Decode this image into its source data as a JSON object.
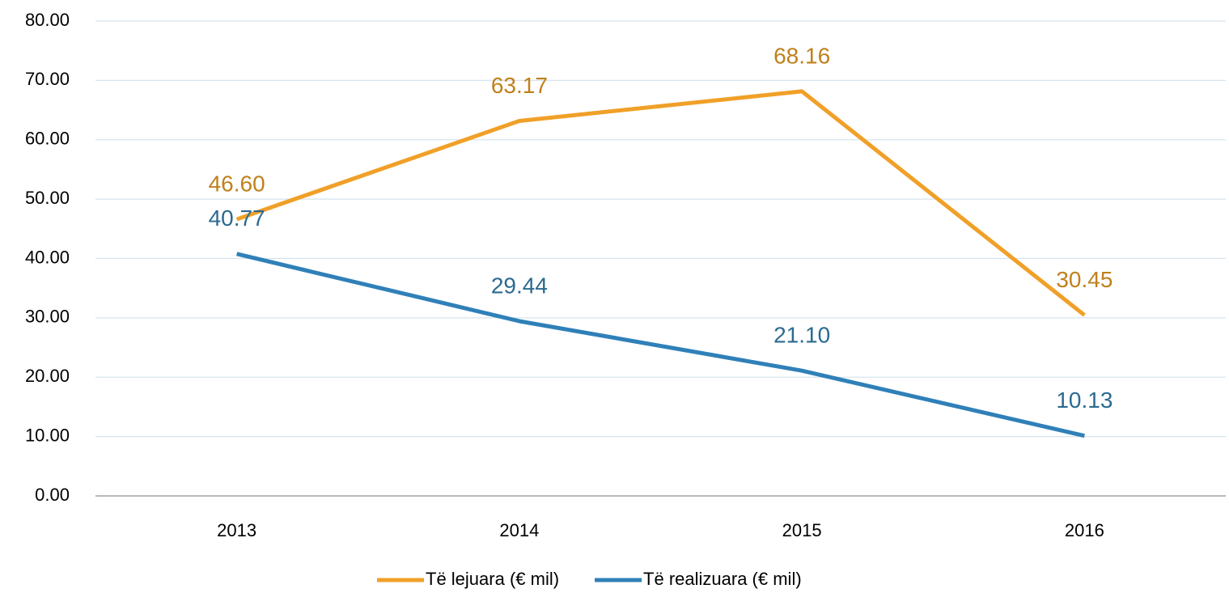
{
  "chart_data": {
    "type": "line",
    "categories": [
      "2013",
      "2014",
      "2015",
      "2016"
    ],
    "series": [
      {
        "name": "Të lejuara (€ mil)",
        "color": "#f0a028",
        "label_color": "#c0801c",
        "values": [
          46.6,
          63.17,
          68.16,
          30.45
        ],
        "value_labels": [
          "46.60",
          "63.17",
          "68.16",
          "30.45"
        ]
      },
      {
        "name": "Të realizuara (€ mil)",
        "color": "#2f80b8",
        "label_color": "#2b6a90",
        "values": [
          40.77,
          29.44,
          21.1,
          10.13
        ],
        "value_labels": [
          "40.77",
          "29.44",
          "21.10",
          "10.13"
        ]
      }
    ],
    "ylim": [
      0,
      80
    ],
    "yticks": [
      {
        "value": 0,
        "label": "0.00"
      },
      {
        "value": 10,
        "label": "10.00"
      },
      {
        "value": 20,
        "label": "20.00"
      },
      {
        "value": 30,
        "label": "30.00"
      },
      {
        "value": 40,
        "label": "40.00"
      },
      {
        "value": 50,
        "label": "50.00"
      },
      {
        "value": 60,
        "label": "60.00"
      },
      {
        "value": 70,
        "label": "70.00"
      },
      {
        "value": 80,
        "label": "80.00"
      }
    ],
    "grid": true,
    "legend": "bottom"
  }
}
